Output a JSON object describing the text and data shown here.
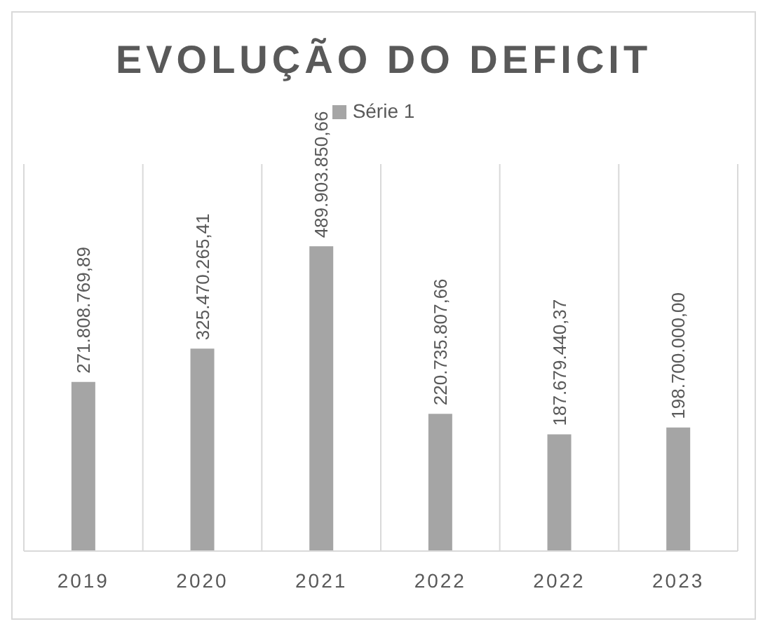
{
  "chart_data": {
    "type": "bar",
    "title": "EVOLUÇÃO DO DEFICIT",
    "categories": [
      "2019",
      "2020",
      "2021",
      "2022",
      "2022",
      "2023"
    ],
    "series": [
      {
        "name": "Série 1",
        "color": "#a5a5a5",
        "values": [
          271808769.89,
          325470265.41,
          489903850.66,
          220735807.66,
          187679440.37,
          198700000.0
        ],
        "value_labels": [
          "271.808.769,89",
          "325.470.265,41",
          "489.903.850,66",
          "220.735.807,66",
          "187.679.440,37",
          "198.700.000,00"
        ]
      }
    ],
    "grid": "x",
    "legend": "top"
  }
}
